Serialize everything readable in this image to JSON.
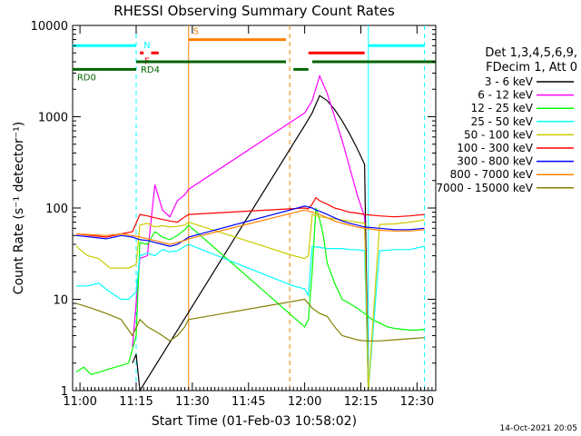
{
  "chart_data": {
    "type": "line",
    "title": "RHESSI Observing Summary Count Rates",
    "xlabel": "Start Time (01-Feb-03 10:58:02)",
    "ylabel": "Count Rate (s⁻¹ detector⁻¹)",
    "yscale": "log",
    "ylim": [
      1,
      10000
    ],
    "xlim": [
      "10:58:02",
      "12:35:00"
    ],
    "x_ticks": [
      "11:00",
      "11:15",
      "11:30",
      "11:45",
      "12:00",
      "12:15",
      "12:30"
    ],
    "y_ticks": [
      "1",
      "10",
      "100",
      "1000",
      "10000"
    ],
    "timestamp": "14-Oct-2021 20:05",
    "legend": {
      "header_line1": "Det 1,3,4,5,6,9,",
      "header_line2": "FDecim 1, Att 0",
      "placement": "right"
    },
    "series": [
      {
        "name": "3 - 6 keV",
        "color": "#000000",
        "x": [
          "11:14",
          "11:15",
          "11:16",
          "12:00",
          "12:02",
          "12:04",
          "12:06",
          "12:08",
          "12:10",
          "12:12",
          "12:14",
          "12:16",
          "12:17"
        ],
        "values": [
          2.0,
          2.5,
          1.0,
          800,
          1100,
          1700,
          1500,
          1200,
          900,
          650,
          450,
          300,
          1
        ]
      },
      {
        "name": "6 - 12 keV",
        "color": "#ff00ff",
        "x": [
          "11:14",
          "11:16",
          "11:18",
          "11:20",
          "11:22",
          "11:24",
          "11:26",
          "11:28",
          "11:29",
          "12:00",
          "12:02",
          "12:04",
          "12:06",
          "12:08",
          "12:10",
          "12:12",
          "12:14",
          "12:16",
          "12:17"
        ],
        "values": [
          3.0,
          28,
          30,
          180,
          95,
          80,
          120,
          140,
          160,
          1100,
          1500,
          2800,
          1800,
          1000,
          550,
          280,
          140,
          80,
          1
        ]
      },
      {
        "name": "12 - 25 keV",
        "color": "#00ff00",
        "x": [
          "10:59",
          "11:01",
          "11:03",
          "11:13",
          "11:15",
          "11:16",
          "11:18",
          "11:20",
          "11:22",
          "11:24",
          "11:26",
          "11:28",
          "11:29",
          "12:00",
          "12:01",
          "12:02",
          "12:03",
          "12:04",
          "12:05",
          "12:06",
          "12:08",
          "12:10",
          "12:12",
          "12:14",
          "12:16",
          "12:18",
          "12:20",
          "12:22",
          "12:24",
          "12:26",
          "12:28",
          "12:30",
          "12:32"
        ],
        "values": [
          1.6,
          1.8,
          1.5,
          2.0,
          4.0,
          42,
          40,
          55,
          48,
          45,
          50,
          58,
          65,
          5.0,
          6.0,
          20,
          100,
          75,
          50,
          25,
          15,
          10,
          9,
          8,
          7,
          6,
          5.5,
          5.0,
          4.8,
          4.7,
          4.6,
          4.6,
          4.7
        ]
      },
      {
        "name": "25 - 50 keV",
        "color": "#00ffff",
        "x": [
          "10:59",
          "11:02",
          "11:05",
          "11:08",
          "11:11",
          "11:13",
          "11:14",
          "11:15",
          "11:16",
          "11:18",
          "11:20",
          "11:22",
          "11:24",
          "11:26",
          "11:28",
          "11:29",
          "11:57",
          "12:00",
          "12:01",
          "12:02",
          "12:04",
          "12:06",
          "12:08",
          "12:10",
          "12:12",
          "12:14",
          "12:16",
          "12:17",
          "12:20",
          "12:24",
          "12:28",
          "12:32"
        ],
        "values": [
          14,
          14,
          15,
          12,
          10,
          10,
          11,
          12,
          30,
          32,
          30,
          35,
          33,
          34,
          38,
          40,
          14,
          13,
          11,
          38,
          37,
          36,
          36,
          36,
          35,
          35,
          34,
          1,
          34,
          35,
          35,
          38
        ]
      },
      {
        "name": "50 - 100 keV",
        "color": "#cccc00",
        "x": [
          "10:59",
          "11:02",
          "11:05",
          "11:08",
          "11:11",
          "11:13",
          "11:14",
          "11:15",
          "11:16",
          "11:18",
          "11:20",
          "11:22",
          "11:24",
          "11:26",
          "11:28",
          "11:29",
          "11:57",
          "12:00",
          "12:01",
          "12:02",
          "12:04",
          "12:06",
          "12:08",
          "12:10",
          "12:12",
          "12:14",
          "12:16",
          "12:17",
          "12:20",
          "12:24",
          "12:28",
          "12:32"
        ],
        "values": [
          38,
          30,
          28,
          22,
          22,
          22,
          23,
          24,
          65,
          68,
          62,
          64,
          62,
          63,
          65,
          70,
          30,
          28,
          30,
          85,
          80,
          78,
          76,
          74,
          72,
          70,
          68,
          1,
          66,
          67,
          70,
          74
        ]
      },
      {
        "name": "100 - 300 keV",
        "color": "#ff0000",
        "x": [
          "10:59",
          "11:03",
          "11:07",
          "11:11",
          "11:14",
          "11:16",
          "11:18",
          "11:20",
          "11:22",
          "11:24",
          "11:26",
          "11:28",
          "11:29",
          "12:00",
          "12:01",
          "12:02",
          "12:03",
          "12:04",
          "12:06",
          "12:08",
          "12:10",
          "12:12",
          "12:14",
          "12:16",
          "12:20",
          "12:24",
          "12:28",
          "12:32"
        ],
        "values": [
          52,
          50,
          48,
          52,
          55,
          85,
          82,
          78,
          75,
          72,
          70,
          80,
          85,
          100,
          98,
          110,
          130,
          120,
          110,
          100,
          95,
          90,
          88,
          85,
          82,
          80,
          82,
          85
        ]
      },
      {
        "name": "300 - 800 keV",
        "color": "#0000ff",
        "x": [
          "10:59",
          "11:03",
          "11:07",
          "11:11",
          "11:14",
          "11:16",
          "11:18",
          "11:20",
          "11:22",
          "11:24",
          "11:26",
          "11:28",
          "11:29",
          "12:00",
          "12:02",
          "12:03",
          "12:04",
          "12:06",
          "12:08",
          "12:10",
          "12:12",
          "12:14",
          "12:16",
          "12:20",
          "12:24",
          "12:28",
          "12:32"
        ],
        "values": [
          50,
          48,
          46,
          50,
          48,
          45,
          44,
          42,
          40,
          38,
          40,
          45,
          48,
          105,
          100,
          95,
          92,
          85,
          78,
          72,
          68,
          65,
          62,
          60,
          58,
          58,
          60
        ]
      },
      {
        "name": "800 - 7000 keV",
        "color": "#ff8000",
        "x": [
          "10:59",
          "11:03",
          "11:07",
          "11:11",
          "11:14",
          "11:16",
          "11:18",
          "11:20",
          "11:22",
          "11:24",
          "11:26",
          "11:28",
          "11:29",
          "12:00",
          "12:02",
          "12:04",
          "12:06",
          "12:08",
          "12:10",
          "12:12",
          "12:14",
          "12:16",
          "12:20",
          "12:24",
          "12:28",
          "12:32"
        ],
        "values": [
          52,
          51,
          50,
          52,
          50,
          48,
          46,
          44,
          42,
          40,
          42,
          44,
          46,
          95,
          90,
          85,
          78,
          72,
          68,
          65,
          62,
          60,
          57,
          56,
          56,
          58
        ]
      },
      {
        "name": "7000 - 15000 keV",
        "color": "#808000",
        "x": [
          "10:59",
          "11:03",
          "11:07",
          "11:11",
          "11:14",
          "11:16",
          "11:18",
          "11:20",
          "11:22",
          "11:24",
          "11:26",
          "11:28",
          "11:29",
          "12:00",
          "12:02",
          "12:04",
          "12:06",
          "12:08",
          "12:10",
          "12:12",
          "12:14",
          "12:16",
          "12:20",
          "12:24",
          "12:28",
          "12:32"
        ],
        "values": [
          9,
          8,
          7,
          6,
          4,
          6,
          5,
          4.5,
          4.0,
          3.5,
          4.0,
          5,
          6,
          10,
          8,
          7,
          6.5,
          5,
          4,
          3.8,
          3.6,
          3.5,
          3.5,
          3.6,
          3.7,
          3.8
        ]
      }
    ],
    "flag_bars": [
      {
        "label": "",
        "color": "#00ffff",
        "x0": "10:58",
        "x1": "11:15",
        "level": 6000
      },
      {
        "label": "",
        "color": "#00ffff",
        "x0": "12:17",
        "x1": "12:32",
        "level": 6000
      },
      {
        "label": "S",
        "color": "#ff8000",
        "x0": "11:29",
        "x1": "11:55",
        "level": 7000
      },
      {
        "label": "F",
        "color": "#ff0000",
        "x0": "11:16",
        "x1": "11:17",
        "level": 5000
      },
      {
        "label": "",
        "color": "#ff0000",
        "x0": "11:19",
        "x1": "11:21",
        "level": 5000
      },
      {
        "label": "",
        "color": "#ff0000",
        "x0": "12:01",
        "x1": "12:16",
        "level": 5000
      },
      {
        "label": "RD0",
        "color": "#006400",
        "x0": "10:58",
        "x1": "11:15",
        "level": 3300
      },
      {
        "label": "RD4",
        "color": "#006400",
        "x0": "11:15",
        "x1": "11:55",
        "level": 4000
      },
      {
        "label": "",
        "color": "#006400",
        "x0": "11:57",
        "x1": "12:01",
        "level": 3300
      },
      {
        "label": "",
        "color": "#006400",
        "x0": "12:02",
        "x1": "12:35",
        "level": 4000
      }
    ],
    "flag_labels": [
      {
        "text": "N",
        "color": "#00ffff"
      }
    ],
    "markers": [
      {
        "x": "11:15",
        "color": "#00ffff",
        "style": "dashed"
      },
      {
        "x": "11:29",
        "color": "#ff8000",
        "style": "solid"
      },
      {
        "x": "11:56",
        "color": "#ff8000",
        "style": "dashed"
      },
      {
        "x": "12:17",
        "color": "#00ffff",
        "style": "solid"
      },
      {
        "x": "12:32",
        "color": "#00ffff",
        "style": "dashed"
      }
    ],
    "grid": false
  }
}
